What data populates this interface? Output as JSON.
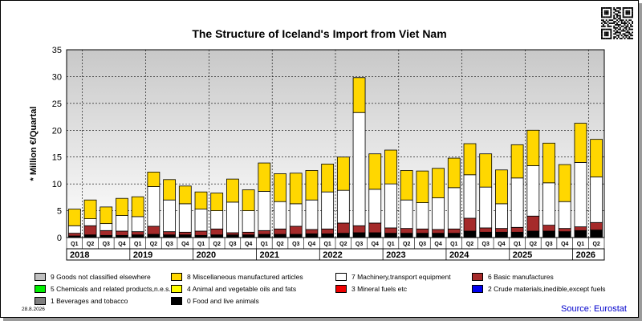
{
  "chart_data": {
    "type": "bar",
    "stacked": true,
    "title": "The Structure of Iceland's Import from Viet Nam",
    "ylabel": "* Million €/Quartal",
    "ylim": [
      0,
      35
    ],
    "yticks": [
      0,
      5,
      10,
      15,
      20,
      25,
      30,
      35
    ],
    "grid": true,
    "legend_position": "bottom",
    "categories": [
      "2018 Q1",
      "2018 Q2",
      "2018 Q3",
      "2018 Q4",
      "2019 Q1",
      "2019 Q2",
      "2019 Q3",
      "2019 Q4",
      "2020 Q1",
      "2020 Q2",
      "2020 Q3",
      "2020 Q4",
      "2021 Q1",
      "2021 Q2",
      "2021 Q3",
      "2021 Q4",
      "2022 Q1",
      "2022 Q2",
      "2022 Q3",
      "2022 Q4",
      "2023 Q1",
      "2023 Q2",
      "2023 Q3",
      "2023 Q4",
      "2024 Q1",
      "2024 Q2",
      "2024 Q3",
      "2024 Q4",
      "2025 Q1",
      "2025 Q2",
      "2025 Q3",
      "2025 Q4",
      "2026 Q1",
      "2026 Q2"
    ],
    "quarter_labels": [
      "Q1",
      "Q2",
      "Q3",
      "Q4",
      "Q1",
      "Q2",
      "Q3",
      "Q4",
      "Q1",
      "Q2",
      "Q3",
      "Q4",
      "Q1",
      "Q2",
      "Q3",
      "Q4",
      "Q1",
      "Q2",
      "Q3",
      "Q4",
      "Q1",
      "Q2",
      "Q3",
      "Q4",
      "Q1",
      "Q2",
      "Q3",
      "Q4",
      "Q1",
      "Q2",
      "Q3",
      "Q4",
      "Q1",
      "Q2"
    ],
    "year_labels": [
      "2018",
      "2019",
      "2020",
      "2021",
      "2022",
      "2023",
      "2024",
      "2025",
      "2026"
    ],
    "series": [
      {
        "name": "0 Food and live animals",
        "color": "#000000",
        "values": [
          0.3,
          0.5,
          0.4,
          0.4,
          0.5,
          0.6,
          0.5,
          0.5,
          0.4,
          0.5,
          0.5,
          0.5,
          0.6,
          0.6,
          0.6,
          0.7,
          0.7,
          0.8,
          0.9,
          0.9,
          0.8,
          0.8,
          0.8,
          0.8,
          0.8,
          1.2,
          1.0,
          1.0,
          1.0,
          1.2,
          1.2,
          1.1,
          1.3,
          1.4
        ]
      },
      {
        "name": "6 Basic manufactures",
        "color": "#a52a2a",
        "values": [
          0.5,
          1.7,
          0.9,
          0.8,
          0.6,
          1.5,
          0.6,
          0.5,
          0.8,
          1.1,
          0.4,
          0.5,
          0.7,
          1.0,
          1.5,
          0.8,
          0.9,
          1.9,
          1.3,
          1.8,
          1.0,
          0.9,
          0.8,
          0.7,
          0.8,
          2.4,
          0.8,
          0.7,
          0.9,
          2.8,
          1.1,
          0.6,
          0.7,
          1.4
        ]
      },
      {
        "name": "7 Machinery,transport equipment",
        "color": "#ffffff",
        "values": [
          1.4,
          1.3,
          1.3,
          2.9,
          2.8,
          7.4,
          5.9,
          5.3,
          4.1,
          3.4,
          5.7,
          4.0,
          7.3,
          5.1,
          4.2,
          5.5,
          6.9,
          6.1,
          21.1,
          6.3,
          8.2,
          5.3,
          4.9,
          5.9,
          7.7,
          8.1,
          7.6,
          4.6,
          9.2,
          9.4,
          7.9,
          5.0,
          12.0,
          8.5
        ]
      },
      {
        "name": "8 Miscellaneous manufactured articles",
        "color": "#ffd700",
        "values": [
          3.1,
          3.5,
          3.1,
          3.2,
          3.7,
          2.7,
          3.8,
          3.3,
          3.2,
          3.3,
          4.3,
          3.9,
          5.3,
          5.2,
          5.7,
          5.5,
          5.2,
          6.2,
          6.5,
          6.6,
          6.3,
          5.5,
          5.9,
          5.5,
          5.5,
          5.8,
          6.2,
          6.3,
          6.2,
          6.6,
          7.4,
          6.9,
          7.3,
          7.0
        ]
      },
      {
        "name": "9 Goods not classified elsewhere",
        "color": "#c0c0c0",
        "values": [
          0,
          0,
          0,
          0,
          0,
          0,
          0,
          0,
          0,
          0,
          0,
          0,
          0,
          0,
          0,
          0,
          0,
          0,
          0,
          0,
          0,
          0,
          0,
          0,
          0,
          0,
          0,
          0,
          0,
          0,
          0,
          0,
          0,
          0
        ]
      },
      {
        "name": "5 Chemicals and related products,n.e.s.",
        "color": "#00ee00",
        "values": [
          0,
          0,
          0,
          0,
          0,
          0,
          0,
          0,
          0,
          0,
          0,
          0,
          0,
          0,
          0,
          0,
          0,
          0,
          0,
          0,
          0,
          0,
          0,
          0,
          0,
          0,
          0,
          0,
          0,
          0,
          0,
          0,
          0,
          0
        ]
      },
      {
        "name": "4 Animal and vegetable oils and fats",
        "color": "#ffff00",
        "values": [
          0,
          0,
          0,
          0,
          0,
          0,
          0,
          0,
          0,
          0,
          0,
          0,
          0,
          0,
          0,
          0,
          0,
          0,
          0,
          0,
          0,
          0,
          0,
          0,
          0,
          0,
          0,
          0,
          0,
          0,
          0,
          0,
          0,
          0
        ]
      },
      {
        "name": "3 Mineral fuels etc",
        "color": "#ee0000",
        "values": [
          0,
          0,
          0,
          0,
          0,
          0,
          0,
          0,
          0,
          0,
          0,
          0,
          0,
          0,
          0,
          0,
          0,
          0,
          0,
          0,
          0,
          0,
          0,
          0,
          0,
          0,
          0,
          0,
          0,
          0,
          0,
          0,
          0,
          0
        ]
      },
      {
        "name": "2 Crude materials,inedible,except fuels",
        "color": "#0000ee",
        "values": [
          0,
          0,
          0,
          0,
          0,
          0,
          0,
          0,
          0,
          0,
          0,
          0,
          0,
          0,
          0,
          0,
          0,
          0,
          0,
          0,
          0,
          0,
          0,
          0,
          0,
          0,
          0,
          0,
          0,
          0,
          0,
          0,
          0,
          0
        ]
      },
      {
        "name": "1 Beverages and tobacco",
        "color": "#808080",
        "values": [
          0,
          0,
          0,
          0,
          0,
          0,
          0,
          0,
          0,
          0,
          0,
          0,
          0,
          0,
          0,
          0,
          0,
          0,
          0,
          0,
          0,
          0,
          0,
          0,
          0,
          0,
          0,
          0,
          0,
          0,
          0,
          0,
          0,
          0
        ]
      }
    ],
    "legend_items": [
      {
        "label": "9 Goods not classified elsewhere",
        "color": "#c0c0c0"
      },
      {
        "label": "8 Miscellaneous manufactured articles",
        "color": "#ffd700"
      },
      {
        "label": "7 Machinery,transport equipment",
        "color": "#ffffff"
      },
      {
        "label": "6 Basic manufactures",
        "color": "#a52a2a"
      },
      {
        "label": "5 Chemicals and related products,n.e.s.",
        "color": "#00ee00"
      },
      {
        "label": "4 Animal and vegetable oils and fats",
        "color": "#ffff00"
      },
      {
        "label": "3 Mineral fuels etc",
        "color": "#ee0000"
      },
      {
        "label": "2 Crude materials,inedible,except fuels",
        "color": "#0000ee"
      },
      {
        "label": "1 Beverages and tobacco",
        "color": "#808080"
      },
      {
        "label": "0 Food and live animals",
        "color": "#000000"
      }
    ]
  },
  "footer": {
    "date": "28.8.2026",
    "source": "Source: Eurostat"
  }
}
